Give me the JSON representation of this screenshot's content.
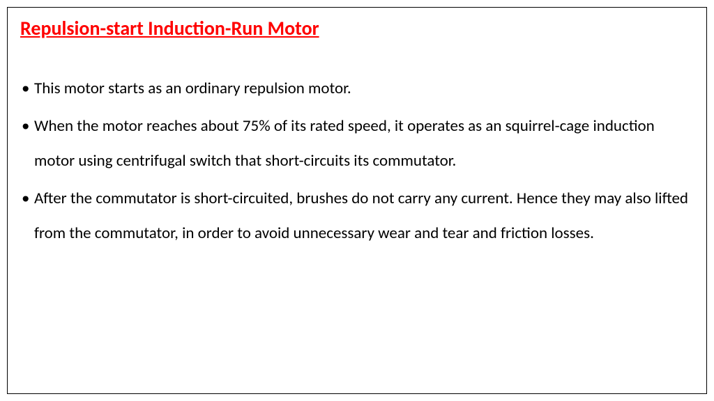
{
  "slide": {
    "title": "Repulsion-start Induction-Run Motor",
    "title_color": "#ff0000",
    "title_fontsize": 28,
    "title_fontweight": "bold",
    "title_underline": true,
    "body_color": "#000000",
    "body_fontsize": 23,
    "border_color": "#000000",
    "background_color": "#ffffff",
    "bullets": [
      "This motor starts as an ordinary repulsion motor.",
      " When the motor reaches about 75% of its rated speed, it operates as an squirrel-cage induction motor using centrifugal switch that short-circuits its commutator.",
      "After the commutator is short-circuited, brushes do not carry any current. Hence they may also lifted from the commutator, in order to avoid unnecessary wear and tear and friction losses."
    ]
  }
}
